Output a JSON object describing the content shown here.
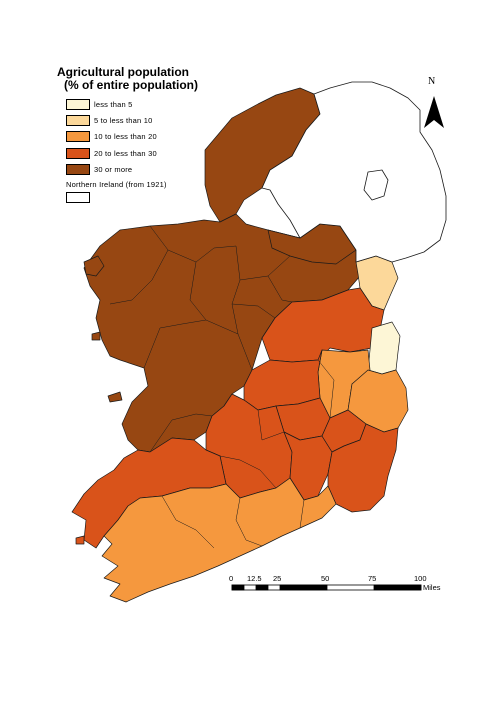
{
  "legend": {
    "title_line1": "Agricultural population",
    "title_line2": "(% of entire population)",
    "items": [
      {
        "label": "less than 5",
        "color": "#fdf6d6"
      },
      {
        "label": "5 to less than 10",
        "color": "#fcd89a"
      },
      {
        "label": "10 to less than 20",
        "color": "#f5983e"
      },
      {
        "label": "20 to less than 30",
        "color": "#d9531a"
      },
      {
        "label": "30 or more",
        "color": "#974712"
      }
    ],
    "northern_ireland_label": "Northern Ireland (from 1921)"
  },
  "north_arrow": {
    "letter": "N"
  },
  "scale_bar": {
    "ticks": [
      "0",
      "12.5",
      "25",
      "50",
      "75",
      "100"
    ],
    "unit": "Miles"
  },
  "colors": {
    "border": "#1a1a1a",
    "northern_ireland_fill": "#ffffff"
  }
}
